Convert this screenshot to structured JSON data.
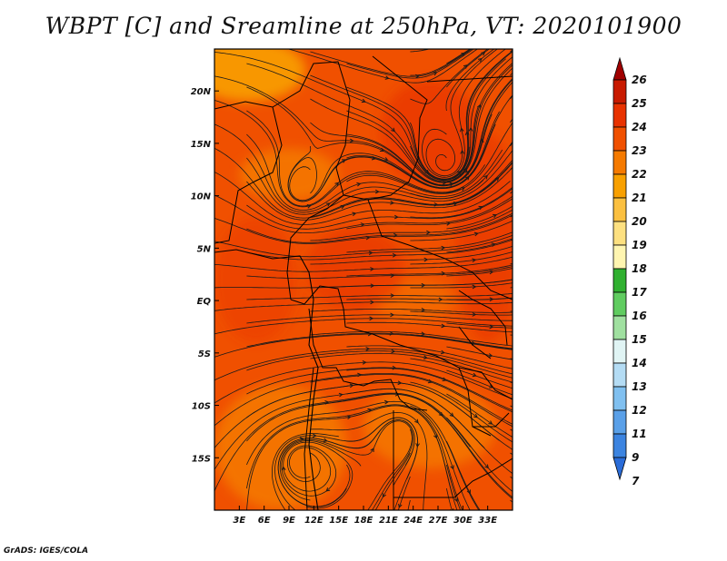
{
  "title": "WBPT [C] and Sreamline at 250hPa, VT: 2020101900",
  "credit": "GrADS: IGES/COLA",
  "map": {
    "field": "Wet bulb potential temperature (C) at 250hPa with streamlines",
    "lon_range": [
      0,
      36
    ],
    "lat_range": [
      -20,
      24
    ],
    "lon_ticks": [
      {
        "lon": 3,
        "label": "3E"
      },
      {
        "lon": 6,
        "label": "6E"
      },
      {
        "lon": 9,
        "label": "9E"
      },
      {
        "lon": 12,
        "label": "12E"
      },
      {
        "lon": 15,
        "label": "15E"
      },
      {
        "lon": 18,
        "label": "18E"
      },
      {
        "lon": 21,
        "label": "21E"
      },
      {
        "lon": 24,
        "label": "24E"
      },
      {
        "lon": 27,
        "label": "27E"
      },
      {
        "lon": 30,
        "label": "30E"
      },
      {
        "lon": 33,
        "label": "33E"
      }
    ],
    "lat_ticks": [
      {
        "lat": 20,
        "label": "20N"
      },
      {
        "lat": 15,
        "label": "15N"
      },
      {
        "lat": 10,
        "label": "10N"
      },
      {
        "lat": 5,
        "label": "5N"
      },
      {
        "lat": 0,
        "label": "EQ"
      },
      {
        "lat": -5,
        "label": "5S"
      },
      {
        "lat": -10,
        "label": "10S"
      },
      {
        "lat": -15,
        "label": "15S"
      }
    ]
  },
  "colorbar": {
    "labels": [
      "26",
      "25",
      "24",
      "23",
      "22",
      "21",
      "20",
      "19",
      "18",
      "17",
      "16",
      "15",
      "14",
      "13",
      "12",
      "11",
      "9",
      "7"
    ],
    "colors": [
      "#a00000",
      "#c81a00",
      "#e83200",
      "#f05000",
      "#f57a00",
      "#f8a000",
      "#fbc040",
      "#fde080",
      "#fff5b0",
      "#30b030",
      "#60cc60",
      "#a0e0a0",
      "#e0f4f4",
      "#b4dcf4",
      "#80c0f0",
      "#5aa0e8",
      "#3c84e0",
      "#2a6cd8"
    ]
  },
  "wbpt_blobs": [
    {
      "lon": 4,
      "lat": 22,
      "rx": 7,
      "ry": 3,
      "color": "#f8a000",
      "opacity": 0.9
    },
    {
      "lon": 9,
      "lat": 12,
      "rx": 6,
      "ry": 2.5,
      "color": "#f57a00",
      "opacity": 0.85
    },
    {
      "lon": 8,
      "lat": -14,
      "rx": 8,
      "ry": 6,
      "color": "#f57a00",
      "opacity": 0.85
    },
    {
      "lon": 26,
      "lat": -12,
      "rx": 8,
      "ry": 4,
      "color": "#f57a00",
      "opacity": 0.8
    },
    {
      "lon": 24,
      "lat": 0,
      "rx": 5,
      "ry": 2,
      "color": "#f57a00",
      "opacity": 0.55
    },
    {
      "lon": 26,
      "lat": 16,
      "rx": 6,
      "ry": 5,
      "color": "#e83200",
      "opacity": 0.7
    },
    {
      "lon": 17,
      "lat": 3,
      "rx": 6,
      "ry": 4,
      "color": "#e83200",
      "opacity": 0.6
    },
    {
      "lon": 33,
      "lat": 6,
      "rx": 4,
      "ry": 10,
      "color": "#e83200",
      "opacity": 0.6
    },
    {
      "lon": 5,
      "lat": 2,
      "rx": 5,
      "ry": 6,
      "color": "#e83200",
      "opacity": 0.45
    }
  ]
}
